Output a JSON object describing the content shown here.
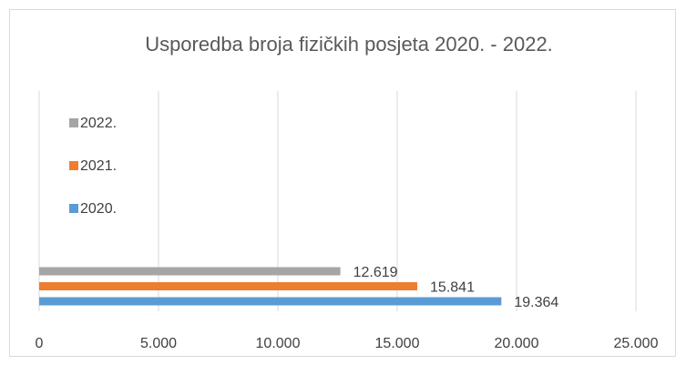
{
  "chart_data": {
    "type": "hbar",
    "title": "Usporedba broja fizičkih posjeta 2020. - 2022.",
    "categories": [
      null
    ],
    "series": [
      {
        "name": "2020.",
        "color": "#5b9bd5",
        "values": [
          19364
        ],
        "value_labels": [
          "19.364"
        ]
      },
      {
        "name": "2021.",
        "color": "#ed7d31",
        "values": [
          15841
        ],
        "value_labels": [
          "15.841"
        ]
      },
      {
        "name": "2022.",
        "color": "#a5a5a5",
        "values": [
          12619
        ],
        "value_labels": [
          "12.619"
        ]
      }
    ],
    "xlim": [
      0,
      25000
    ],
    "xticks": [
      0,
      {
        "value": 5000,
        "label": "5.000"
      },
      {
        "value": 10000,
        "label": "10.000"
      },
      {
        "value": 15000,
        "label": "15.000"
      },
      {
        "value": 20000,
        "label": "20.000"
      },
      {
        "value": 25000,
        "label": "25.000"
      }
    ],
    "grid": true,
    "legend": "top-left"
  }
}
